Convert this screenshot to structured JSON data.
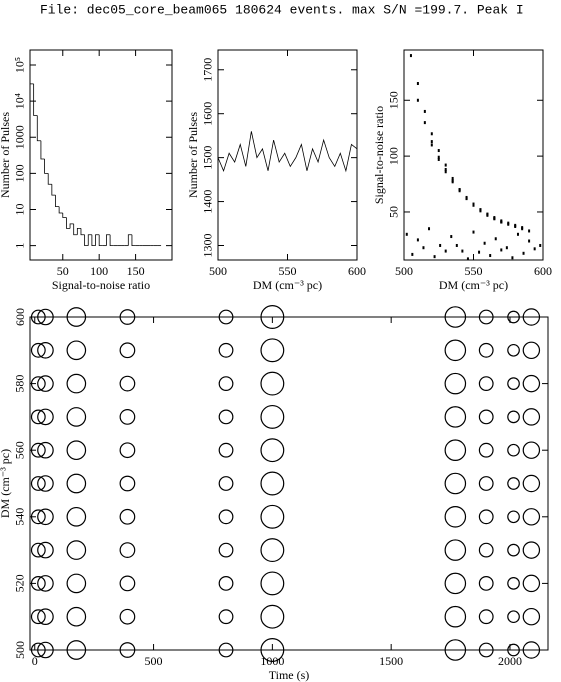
{
  "title": "File: dec05_core_beam065    180624 events. max S/N =199.7. Peak I",
  "chart_data": [
    {
      "type": "histogram",
      "xlabel": "Signal-to-noise ratio",
      "ylabel": "Number of Pulses",
      "ylog": true,
      "bins": [
        5,
        10,
        15,
        20,
        25,
        30,
        35,
        40,
        45,
        50,
        55,
        60,
        65,
        70,
        75,
        80,
        85,
        90,
        95,
        100,
        105,
        110,
        115,
        120,
        125,
        130,
        135,
        140,
        145,
        150,
        155,
        160,
        165,
        170,
        175,
        180,
        185
      ],
      "counts": [
        30000,
        4000,
        800,
        250,
        100,
        50,
        25,
        12,
        8,
        6,
        3,
        4,
        2,
        3,
        2,
        1,
        2,
        1,
        2,
        1,
        1,
        2,
        1,
        1,
        1,
        1,
        1,
        2,
        1,
        1,
        1,
        1,
        1,
        1,
        1,
        1
      ],
      "xlim": [
        5,
        200
      ],
      "xticks": [
        50,
        100,
        150
      ],
      "ylim": [
        0.4,
        260000
      ],
      "yticks": [
        1,
        10,
        100,
        1000,
        {
          "value": 10000,
          "label": "10⁴"
        },
        {
          "value": 100000,
          "label": "10⁵"
        }
      ]
    },
    {
      "type": "line",
      "xlabel": "DM (cm⁻³ pc)",
      "ylabel": "Number of Pulses",
      "x": [
        500,
        504,
        508,
        512,
        516,
        520,
        524,
        528,
        532,
        536,
        540,
        544,
        548,
        552,
        556,
        560,
        564,
        568,
        572,
        576,
        580,
        584,
        588,
        592,
        596,
        600
      ],
      "values": [
        1500,
        1470,
        1510,
        1490,
        1530,
        1480,
        1560,
        1500,
        1520,
        1470,
        1540,
        1490,
        1510,
        1480,
        1500,
        1530,
        1470,
        1520,
        1490,
        1540,
        1500,
        1480,
        1510,
        1470,
        1530,
        1520
      ],
      "xlim": [
        500,
        600
      ],
      "xticks": [
        500,
        550,
        600
      ],
      "ylim": [
        1267,
        1745
      ],
      "yticks": [
        1300,
        1400,
        1500,
        1600,
        1700
      ]
    },
    {
      "type": "scatter",
      "xlabel": "DM (cm⁻³ pc)",
      "ylabel": "Signal-to-noise ratio",
      "x": [
        505,
        510,
        515,
        520,
        525,
        530,
        535,
        540,
        545,
        550,
        555,
        560,
        565,
        570,
        510,
        515,
        520,
        525,
        530,
        535,
        540,
        545,
        550,
        555,
        560,
        565,
        570,
        575,
        580,
        585,
        520,
        525,
        530,
        535,
        540,
        545,
        550,
        555,
        560,
        565,
        570,
        575,
        580,
        585,
        590,
        502,
        510,
        518,
        526,
        534,
        542,
        550,
        558,
        566,
        574,
        582,
        590,
        598,
        506,
        514,
        522,
        530,
        538,
        546,
        554,
        562,
        570,
        578,
        586,
        594
      ],
      "y": [
        190,
        165,
        140,
        120,
        105,
        92,
        80,
        70,
        62,
        56,
        51,
        47,
        44,
        41,
        150,
        130,
        113,
        99,
        88,
        78,
        70,
        63,
        57,
        52,
        48,
        45,
        42,
        40,
        38,
        36,
        110,
        97,
        86,
        77,
        69,
        62,
        57,
        52,
        48,
        44,
        41,
        39,
        37,
        35,
        33,
        30,
        25,
        35,
        20,
        28,
        15,
        32,
        22,
        26,
        18,
        30,
        24,
        20,
        12,
        18,
        10,
        15,
        20,
        8,
        14,
        11,
        16,
        9,
        13,
        17
      ],
      "xlim": [
        500,
        600
      ],
      "xticks": [
        500,
        550,
        600
      ],
      "ylim": [
        7,
        195
      ],
      "yticks": [
        50,
        100,
        150
      ]
    },
    {
      "type": "bubble",
      "xlabel": "Time (s)",
      "ylabel": "DM (cm⁻³ pc)",
      "x": [
        15,
        15,
        15,
        15,
        15,
        15,
        15,
        15,
        15,
        15,
        15,
        45,
        45,
        45,
        45,
        45,
        45,
        45,
        45,
        45,
        45,
        45,
        175,
        175,
        175,
        175,
        175,
        175,
        175,
        175,
        175,
        175,
        175,
        390,
        390,
        390,
        390,
        390,
        390,
        390,
        390,
        390,
        390,
        390,
        805,
        805,
        805,
        805,
        805,
        805,
        805,
        805,
        805,
        805,
        805,
        1000,
        1000,
        1000,
        1000,
        1000,
        1000,
        1000,
        1000,
        1000,
        1000,
        1000,
        1770,
        1770,
        1770,
        1770,
        1770,
        1770,
        1770,
        1770,
        1770,
        1770,
        1770,
        1900,
        1900,
        1900,
        1900,
        1900,
        1900,
        1900,
        1900,
        1900,
        1900,
        1900,
        2015,
        2015,
        2015,
        2015,
        2015,
        2015,
        2015,
        2015,
        2015,
        2015,
        2015,
        2090,
        2090,
        2090,
        2090,
        2090,
        2090,
        2090,
        2090,
        2090,
        2090,
        2090
      ],
      "y": [
        500,
        510,
        520,
        530,
        540,
        550,
        560,
        570,
        580,
        590,
        600,
        500,
        510,
        520,
        530,
        540,
        550,
        560,
        570,
        580,
        590,
        600,
        500,
        510,
        520,
        530,
        540,
        550,
        560,
        570,
        580,
        590,
        600,
        500,
        510,
        520,
        530,
        540,
        550,
        560,
        570,
        580,
        590,
        600,
        500,
        510,
        520,
        530,
        540,
        550,
        560,
        570,
        580,
        590,
        600,
        500,
        510,
        520,
        530,
        540,
        550,
        560,
        570,
        580,
        590,
        600,
        500,
        510,
        520,
        530,
        540,
        550,
        560,
        570,
        580,
        590,
        600,
        500,
        510,
        520,
        530,
        540,
        550,
        560,
        570,
        580,
        590,
        600,
        500,
        510,
        520,
        530,
        540,
        550,
        560,
        570,
        580,
        590,
        600,
        500,
        510,
        520,
        530,
        540,
        550,
        560,
        570,
        580,
        590,
        600
      ],
      "sizes": [
        60,
        60,
        60,
        60,
        60,
        60,
        60,
        60,
        60,
        60,
        60,
        80,
        80,
        80,
        80,
        80,
        80,
        80,
        80,
        80,
        80,
        80,
        120,
        120,
        120,
        120,
        120,
        120,
        120,
        120,
        120,
        120,
        120,
        70,
        70,
        70,
        70,
        70,
        70,
        70,
        70,
        70,
        70,
        70,
        60,
        60,
        60,
        60,
        60,
        60,
        60,
        60,
        60,
        60,
        60,
        190,
        190,
        190,
        190,
        190,
        190,
        190,
        190,
        190,
        190,
        190,
        150,
        150,
        150,
        150,
        150,
        150,
        150,
        150,
        150,
        150,
        150,
        60,
        60,
        60,
        60,
        60,
        60,
        60,
        60,
        60,
        60,
        60,
        40,
        40,
        40,
        40,
        40,
        40,
        40,
        40,
        40,
        40,
        40,
        90,
        90,
        90,
        90,
        90,
        90,
        90,
        90,
        90,
        90,
        90
      ],
      "xlim": [
        -20,
        2160
      ],
      "xticks": [
        0,
        500,
        1000,
        1500,
        2000
      ],
      "ylim": [
        500,
        600
      ],
      "yticks": [
        500,
        520,
        540,
        560,
        580,
        600
      ]
    }
  ]
}
